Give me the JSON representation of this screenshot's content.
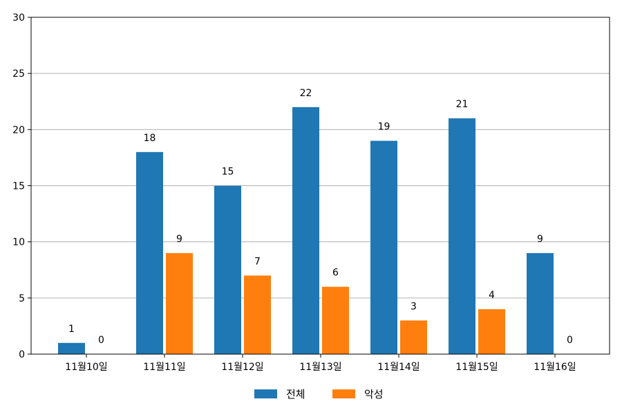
{
  "chart_data": {
    "type": "bar",
    "categories": [
      "11월10일",
      "11월11일",
      "11월12일",
      "11월13일",
      "11월14일",
      "11월15일",
      "11월16일"
    ],
    "series": [
      {
        "name": "전체",
        "color": "#1f77b4",
        "values": [
          1,
          18,
          15,
          22,
          19,
          21,
          9
        ]
      },
      {
        "name": "악성",
        "color": "#ff7f0e",
        "values": [
          0,
          9,
          7,
          6,
          3,
          4,
          0
        ]
      }
    ],
    "ylim": [
      0,
      30
    ],
    "yticks": [
      0,
      5,
      10,
      15,
      20,
      25,
      30
    ],
    "grid": "horizontal",
    "legend_position": "bottom-center",
    "title": "",
    "xlabel": "",
    "ylabel": ""
  }
}
